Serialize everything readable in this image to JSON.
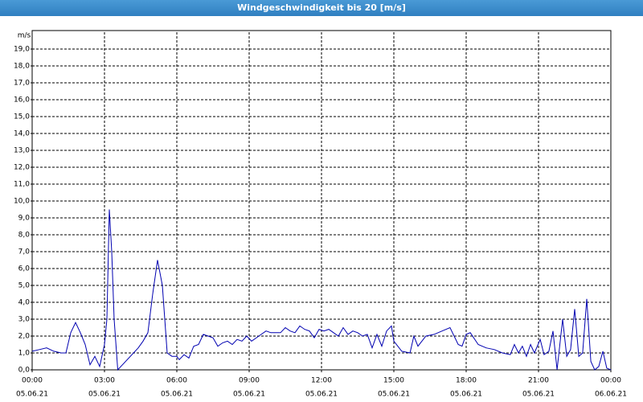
{
  "chart_data": {
    "type": "line",
    "title": "Windgeschwindigkeit bis 20 [m/s]",
    "y_label": "m/s",
    "xlim": [
      0,
      24
    ],
    "ylim": [
      0,
      20
    ],
    "xticks": [
      {
        "value": 0,
        "label": "00:00",
        "date": "05.06.21"
      },
      {
        "value": 3,
        "label": "03:00",
        "date": "05.06.21"
      },
      {
        "value": 6,
        "label": "06:00",
        "date": "05.06.21"
      },
      {
        "value": 9,
        "label": "09:00",
        "date": "05.06.21"
      },
      {
        "value": 12,
        "label": "12:00",
        "date": "05.06.21"
      },
      {
        "value": 15,
        "label": "15:00",
        "date": "05.06.21"
      },
      {
        "value": 18,
        "label": "18:00",
        "date": "05.06.21"
      },
      {
        "value": 21,
        "label": "21:00",
        "date": "05.06.21"
      },
      {
        "value": 24,
        "label": "00:00",
        "date": "06.06.21"
      }
    ],
    "yticks": [
      {
        "value": 0,
        "label": "0,0"
      },
      {
        "value": 1,
        "label": "1,0"
      },
      {
        "value": 2,
        "label": "2,0"
      },
      {
        "value": 3,
        "label": "3,0"
      },
      {
        "value": 4,
        "label": "4,0"
      },
      {
        "value": 5,
        "label": "5,0"
      },
      {
        "value": 6,
        "label": "6,0"
      },
      {
        "value": 7,
        "label": "7,0"
      },
      {
        "value": 8,
        "label": "8,0"
      },
      {
        "value": 9,
        "label": "9,0"
      },
      {
        "value": 10,
        "label": "10,0"
      },
      {
        "value": 11,
        "label": "11,0"
      },
      {
        "value": 12,
        "label": "12,0"
      },
      {
        "value": 13,
        "label": "13,0"
      },
      {
        "value": 14,
        "label": "14,0"
      },
      {
        "value": 15,
        "label": "15,0"
      },
      {
        "value": 16,
        "label": "16,0"
      },
      {
        "value": 17,
        "label": "17,0"
      },
      {
        "value": 18,
        "label": "18,0"
      },
      {
        "value": 19,
        "label": "19,0"
      }
    ],
    "grid": true,
    "x": [
      0,
      0.3,
      0.6,
      0.9,
      1.2,
      1.4,
      1.6,
      1.8,
      2.0,
      2.2,
      2.4,
      2.6,
      2.8,
      3.0,
      3.1,
      3.2,
      3.3,
      3.4,
      3.5,
      3.55,
      4.4,
      4.6,
      4.8,
      5.0,
      5.2,
      5.4,
      5.6,
      5.8,
      6.0,
      6.1,
      6.3,
      6.5,
      6.7,
      6.9,
      7.1,
      7.3,
      7.5,
      7.7,
      7.9,
      8.1,
      8.3,
      8.5,
      8.7,
      8.9,
      9.1,
      9.3,
      9.5,
      9.7,
      9.9,
      10.1,
      10.3,
      10.5,
      10.7,
      10.9,
      11.1,
      11.3,
      11.5,
      11.7,
      11.9,
      12.1,
      12.3,
      12.5,
      12.7,
      12.9,
      13.1,
      13.3,
      13.5,
      13.7,
      13.9,
      14.1,
      14.3,
      14.5,
      14.7,
      14.9,
      15.0,
      15.33,
      15.67,
      15.83,
      16.0,
      16.33,
      16.67,
      17.0,
      17.33,
      17.67,
      17.83,
      18.0,
      18.17,
      18.5,
      18.83,
      19.17,
      19.5,
      19.83,
      20.0,
      20.17,
      20.33,
      20.5,
      20.67,
      20.83,
      21.07,
      21.23,
      21.43,
      21.6,
      21.77,
      22.0,
      22.17,
      22.33,
      22.5,
      22.67,
      22.83,
      23.0,
      23.17,
      23.33,
      23.5,
      23.67,
      23.83,
      24.0
    ],
    "series": [
      {
        "name": "Windgeschwindigkeit",
        "color": "#0000b0",
        "values": [
          1.1,
          1.2,
          1.3,
          1.1,
          1.0,
          1.0,
          2.2,
          2.8,
          2.2,
          1.5,
          0.3,
          0.8,
          0.2,
          1.5,
          3.0,
          9.5,
          7.0,
          3.0,
          1.0,
          0,
          1.3,
          1.7,
          2.2,
          4.5,
          6.5,
          5.0,
          1.0,
          0.8,
          0.8,
          0.6,
          0.9,
          0.7,
          1.4,
          1.5,
          2.1,
          2.0,
          1.9,
          1.4,
          1.6,
          1.7,
          1.5,
          1.8,
          1.7,
          2.0,
          1.7,
          1.9,
          2.1,
          2.3,
          2.2,
          2.2,
          2.2,
          2.5,
          2.3,
          2.2,
          2.6,
          2.4,
          2.3,
          1.9,
          2.4,
          2.3,
          2.4,
          2.2,
          2.0,
          2.5,
          2.1,
          2.3,
          2.2,
          2.0,
          2.1,
          1.3,
          2.1,
          1.4,
          2.3,
          2.6,
          1.7,
          1.1,
          1.0,
          2.0,
          1.4,
          2.0,
          2.1,
          2.3,
          2.5,
          1.5,
          1.4,
          2.1,
          2.2,
          1.5,
          1.3,
          1.2,
          1.0,
          0.9,
          1.5,
          1.0,
          1.4,
          0.8,
          1.5,
          1.0,
          1.8,
          0.9,
          1.1,
          2.3,
          0,
          3.0,
          0.8,
          1.2,
          3.6,
          0.8,
          1.0,
          4.2,
          0.5,
          0,
          0.2,
          1.1,
          0.1,
          0
        ]
      }
    ]
  }
}
